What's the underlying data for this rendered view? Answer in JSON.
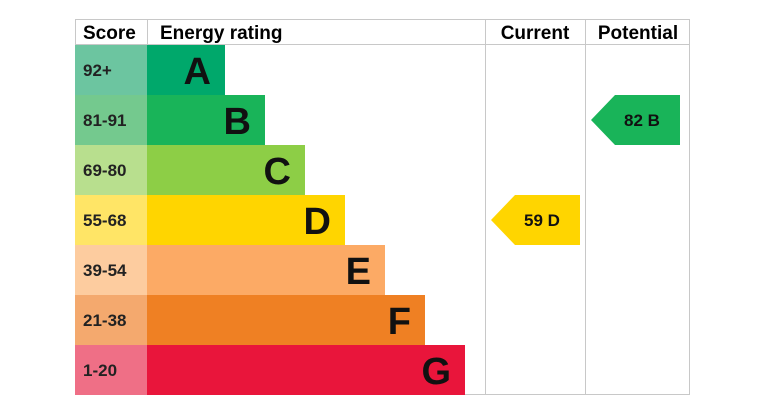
{
  "headers": {
    "score": "Score",
    "energy_rating": "Energy rating",
    "current": "Current",
    "potential": "Potential"
  },
  "chart_data": {
    "type": "table",
    "bands": [
      {
        "letter": "A",
        "range": "92+",
        "color": "#00a86b",
        "score_bg": "#6cc5a0"
      },
      {
        "letter": "B",
        "range": "81-91",
        "color": "#19b459",
        "score_bg": "#74c98e"
      },
      {
        "letter": "C",
        "range": "69-80",
        "color": "#8dce46",
        "score_bg": "#b8df8e"
      },
      {
        "letter": "D",
        "range": "55-68",
        "color": "#ffd500",
        "score_bg": "#ffe566"
      },
      {
        "letter": "E",
        "range": "39-54",
        "color": "#fcaa65",
        "score_bg": "#fdcc9f"
      },
      {
        "letter": "F",
        "range": "21-38",
        "color": "#ef8023",
        "score_bg": "#f4a96e"
      },
      {
        "letter": "G",
        "range": "1-20",
        "color": "#e9153b",
        "score_bg": "#ef6f86"
      }
    ],
    "current": {
      "value": 59,
      "band": "D",
      "label": "59  D",
      "color": "#ffd500",
      "text_color": "#111111"
    },
    "potential": {
      "value": 82,
      "band": "B",
      "label": "82  B",
      "color": "#19b459",
      "text_color": "#111111"
    }
  }
}
